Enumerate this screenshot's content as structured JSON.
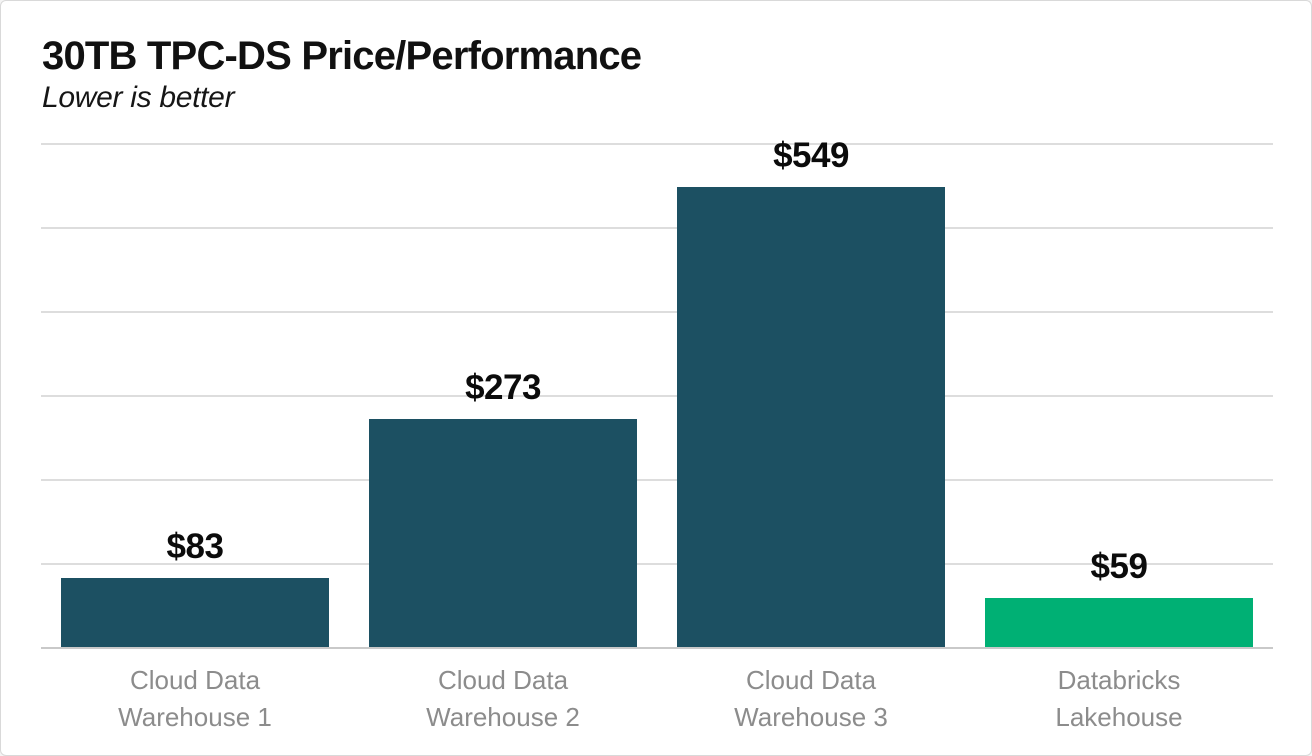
{
  "header": {
    "title": "30TB TPC-DS Price/Performance",
    "subtitle": "Lower is better"
  },
  "chart_data": {
    "type": "bar",
    "title": "30TB TPC-DS Price/Performance",
    "subtitle": "Lower is better",
    "categories": [
      "Cloud Data Warehouse 1",
      "Cloud Data Warehouse 2",
      "Cloud Data Warehouse 3",
      "Databricks Lakehouse"
    ],
    "category_lines": [
      [
        "Cloud Data",
        "Warehouse 1"
      ],
      [
        "Cloud Data",
        "Warehouse 2"
      ],
      [
        "Cloud Data",
        "Warehouse 3"
      ],
      [
        "Databricks",
        "Lakehouse"
      ]
    ],
    "values": [
      83,
      273,
      549,
      59
    ],
    "value_labels": [
      "$83",
      "$273",
      "$549",
      "$59"
    ],
    "bar_colors": [
      "#1C5062",
      "#1C5062",
      "#1C5062",
      "#00B074"
    ],
    "xlabel": "",
    "ylabel": "",
    "ylim": [
      0,
      600
    ],
    "gridline_step": 100,
    "grid": true,
    "legend": false,
    "y_tick_labels_visible": false,
    "colors": {
      "teal_bar": "#1C5062",
      "green_bar": "#00B074",
      "gridline": "#dddddd",
      "baseline": "#c9c9c9",
      "value_label": "#0b0b0b",
      "category_label": "#8c8c8c",
      "title": "#111111"
    }
  }
}
